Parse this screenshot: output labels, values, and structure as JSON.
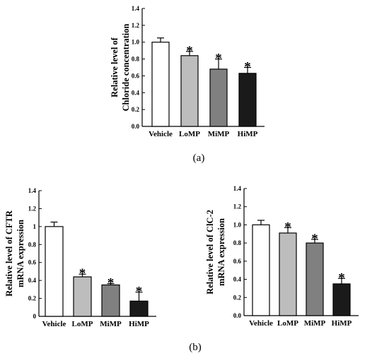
{
  "panel_labels": {
    "a": "(a)",
    "b": "(b)"
  },
  "chart_data": [
    {
      "type": "bar",
      "ylabel_lines": [
        "Relative level of",
        "Chloride  concentration"
      ],
      "categories": [
        "Vehicle",
        "LoMP",
        "MiMP",
        "HiMP"
      ],
      "values": [
        1.0,
        0.84,
        0.68,
        0.63
      ],
      "errors": [
        0.05,
        0.05,
        0.12,
        0.07
      ],
      "significance": [
        "",
        "*",
        "*",
        "*"
      ],
      "ylim": [
        0,
        1.4
      ],
      "yticks": [
        "0.0",
        "0.2",
        "0.4",
        "0.6",
        "0.8",
        "1.0",
        "1.2",
        "1.4"
      ],
      "bar_colors": [
        "#ffffff",
        "#bdbdbd",
        "#808080",
        "#1a1a1a"
      ]
    },
    {
      "type": "bar",
      "ylabel_lines": [
        "Relative level of  CFTR",
        "mRNA expression"
      ],
      "categories": [
        "Vehicle",
        "LoMP",
        "MiMP",
        "HiMP"
      ],
      "values": [
        1.0,
        0.44,
        0.35,
        0.17
      ],
      "errors": [
        0.05,
        0.03,
        0.015,
        0.1
      ],
      "significance": [
        "",
        "*",
        "*",
        "*"
      ],
      "ylim": [
        0,
        1.4
      ],
      "yticks": [
        "0",
        "0.2",
        "0.4",
        "0.6",
        "0.8",
        "1",
        "1.2",
        "1.4"
      ],
      "bar_colors": [
        "#ffffff",
        "#bdbdbd",
        "#808080",
        "#1a1a1a"
      ]
    },
    {
      "type": "bar",
      "ylabel_lines": [
        "Relative level of  ClC-2",
        "mRNA expression"
      ],
      "categories": [
        "Vehicle",
        "LoMP",
        "MiMP",
        "HiMP"
      ],
      "values": [
        1.0,
        0.91,
        0.8,
        0.35
      ],
      "errors": [
        0.05,
        0.06,
        0.04,
        0.06
      ],
      "significance": [
        "",
        "*",
        "*",
        "*"
      ],
      "ylim": [
        0,
        1.4
      ],
      "yticks": [
        "0.0",
        "0.2",
        "0.4",
        "0.6",
        "0.8",
        "1.0",
        "1.2",
        "1.4"
      ],
      "bar_colors": [
        "#ffffff",
        "#bdbdbd",
        "#808080",
        "#1a1a1a"
      ]
    }
  ]
}
